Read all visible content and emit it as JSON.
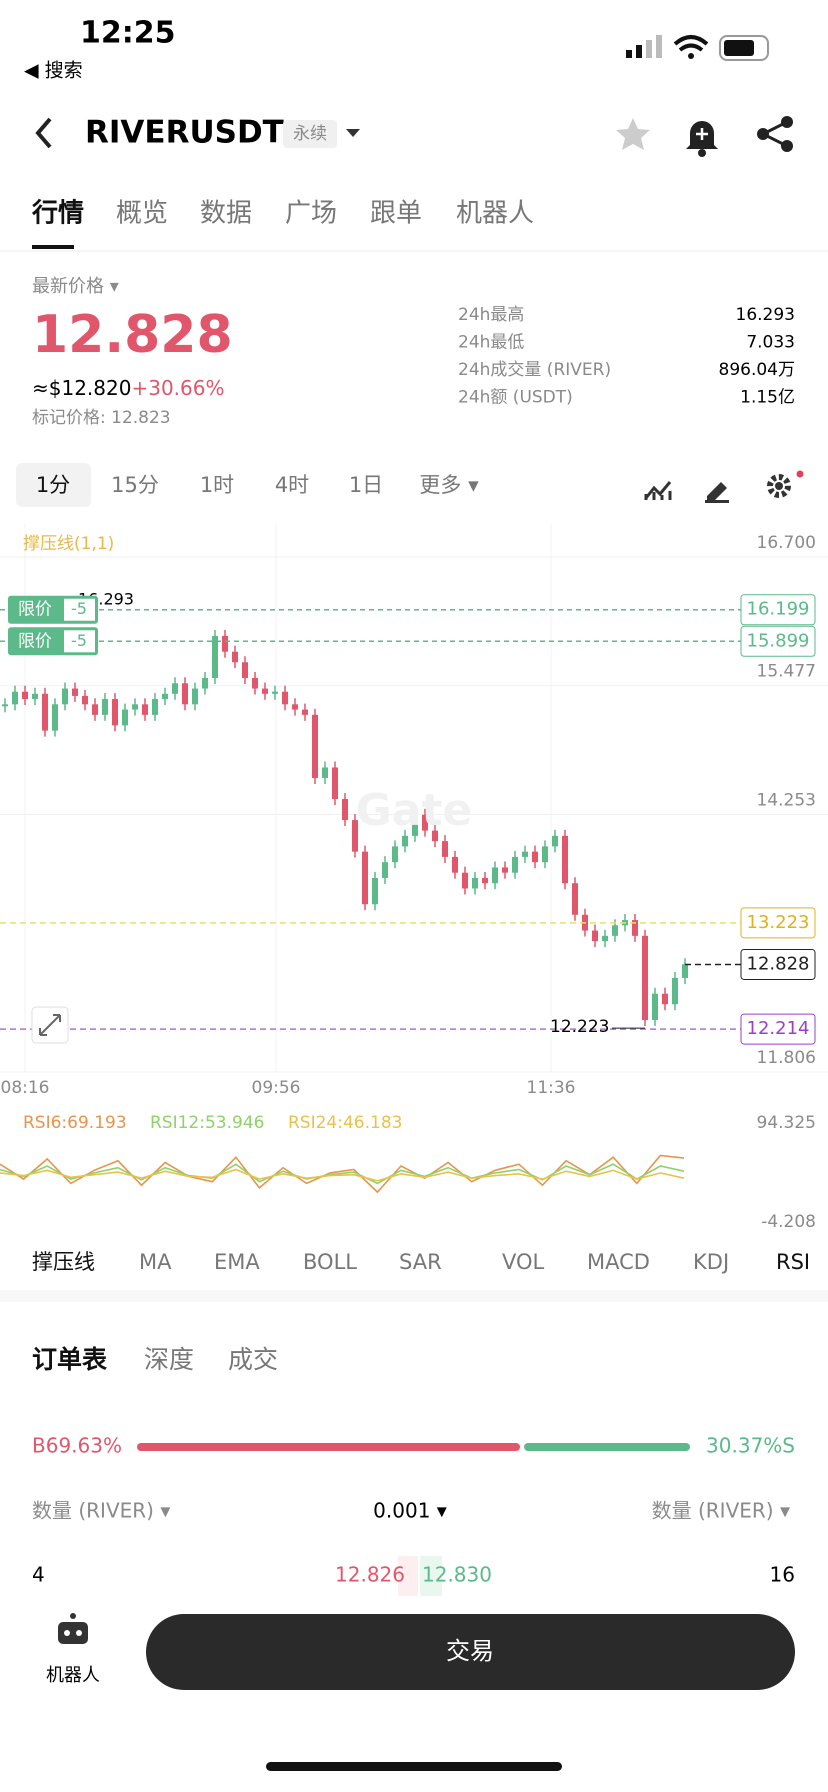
{
  "status_bar": {
    "time": "12:25",
    "back": "◀ 搜索"
  },
  "header": {
    "symbol": "RIVERUSDT",
    "badge": "永续"
  },
  "tabs": [
    "行情",
    "概览",
    "数据",
    "广场",
    "跟单",
    "机器人"
  ],
  "price": {
    "label": "最新价格 ▾",
    "last": "12.828",
    "usd": "≈$12.820",
    "change": "+30.66%",
    "mark": "标记价格: 12.823"
  },
  "stats": [
    {
      "label": "24h最高",
      "value": "16.293"
    },
    {
      "label": "24h最低",
      "value": "7.033"
    },
    {
      "label": "24h成交量 (RIVER)",
      "value": "896.04万"
    },
    {
      "label": "24h额 (USDT)",
      "value": "1.15亿"
    }
  ],
  "timeframes": [
    "1分",
    "15分",
    "1时",
    "4时",
    "1日",
    "更多 ▾"
  ],
  "chart": {
    "type": "candlestick",
    "legend": "撑压线(1,1)",
    "ylim": [
      11.806,
      16.7
    ],
    "yticks": [
      {
        "value": 16.7,
        "label": "16.700"
      },
      15.477,
      14.253,
      11.806
    ],
    "xticks": [
      "08:16",
      "09:56",
      "11:36"
    ],
    "up_color": "#5bb98a",
    "down_color": "#e0576b",
    "closes": [
      15.3,
      15.42,
      15.35,
      15.4,
      15.05,
      15.3,
      15.45,
      15.38,
      15.3,
      15.2,
      15.35,
      15.1,
      15.25,
      15.3,
      15.2,
      15.35,
      15.4,
      15.5,
      15.3,
      15.45,
      15.55,
      15.95,
      15.8,
      15.7,
      15.55,
      15.45,
      15.4,
      15.42,
      15.3,
      15.25,
      15.2,
      14.6,
      14.7,
      14.4,
      14.2,
      13.9,
      13.4,
      13.65,
      13.8,
      13.95,
      14.05,
      14.25,
      14.1,
      14.0,
      13.85,
      13.7,
      13.55,
      13.65,
      13.6,
      13.75,
      13.7,
      13.85,
      13.9,
      13.8,
      13.95,
      14.05,
      13.6,
      13.3,
      13.15,
      13.05,
      13.1,
      13.2,
      13.25,
      13.1,
      12.3,
      12.55,
      12.45,
      12.7,
      12.83
    ],
    "orders": [
      {
        "label": "限价",
        "qty": "-5",
        "price": 16.199
      },
      {
        "label": "限价",
        "qty": "-5",
        "price": 15.899
      }
    ],
    "support": 13.223,
    "current": 12.828,
    "liquidation": 12.214,
    "high": 16.293,
    "low": 12.223,
    "watermark": "Gate"
  },
  "rsi": {
    "ylim": [
      -4.208,
      94.325
    ],
    "yticks": [
      94.325,
      -4.208
    ],
    "series": [
      {
        "name": "RSI6:69.193",
        "color": "#e8944a",
        "values": [
          62,
          45,
          68,
          40,
          55,
          66,
          38,
          64,
          48,
          42,
          70,
          35,
          58,
          40,
          52,
          56,
          30,
          60,
          46,
          64,
          42,
          55,
          62,
          38,
          66,
          50,
          70,
          40,
          72,
          69
        ]
      },
      {
        "name": "RSI12:53.946",
        "color": "#8fd16b",
        "values": [
          56,
          48,
          60,
          45,
          52,
          58,
          44,
          58,
          49,
          46,
          62,
          42,
          54,
          45,
          50,
          53,
          40,
          55,
          48,
          58,
          46,
          52,
          56,
          44,
          60,
          50,
          62,
          45,
          60,
          54
        ]
      },
      {
        "name": "RSI24:46.183",
        "color": "#e8c24a",
        "values": [
          52,
          49,
          55,
          47,
          50,
          53,
          46,
          54,
          48,
          47,
          56,
          45,
          51,
          46,
          49,
          50,
          43,
          51,
          47,
          53,
          46,
          49,
          51,
          45,
          54,
          48,
          55,
          45,
          52,
          46
        ]
      }
    ]
  },
  "indicators": [
    "撑压线",
    "MA",
    "EMA",
    "BOLL",
    "SAR",
    "VOL",
    "MACD",
    "KDJ",
    "RSI"
  ],
  "orderbook": {
    "tabs": [
      "订单表",
      "深度",
      "成交"
    ],
    "ratio": {
      "buy": 69.63,
      "buy_label": "B69.63%",
      "sell": 30.37,
      "sell_label": "30.37%S"
    },
    "col_left": "数量 (RIVER) ▾",
    "step": "0.001 ▾",
    "col_right": "数量 (RIVER) ▾",
    "row": {
      "bid_qty": "4",
      "bid": "12.826",
      "ask": "12.830",
      "ask_qty": "16"
    }
  },
  "bottom": {
    "robot": "机器人",
    "trade": "交易"
  }
}
